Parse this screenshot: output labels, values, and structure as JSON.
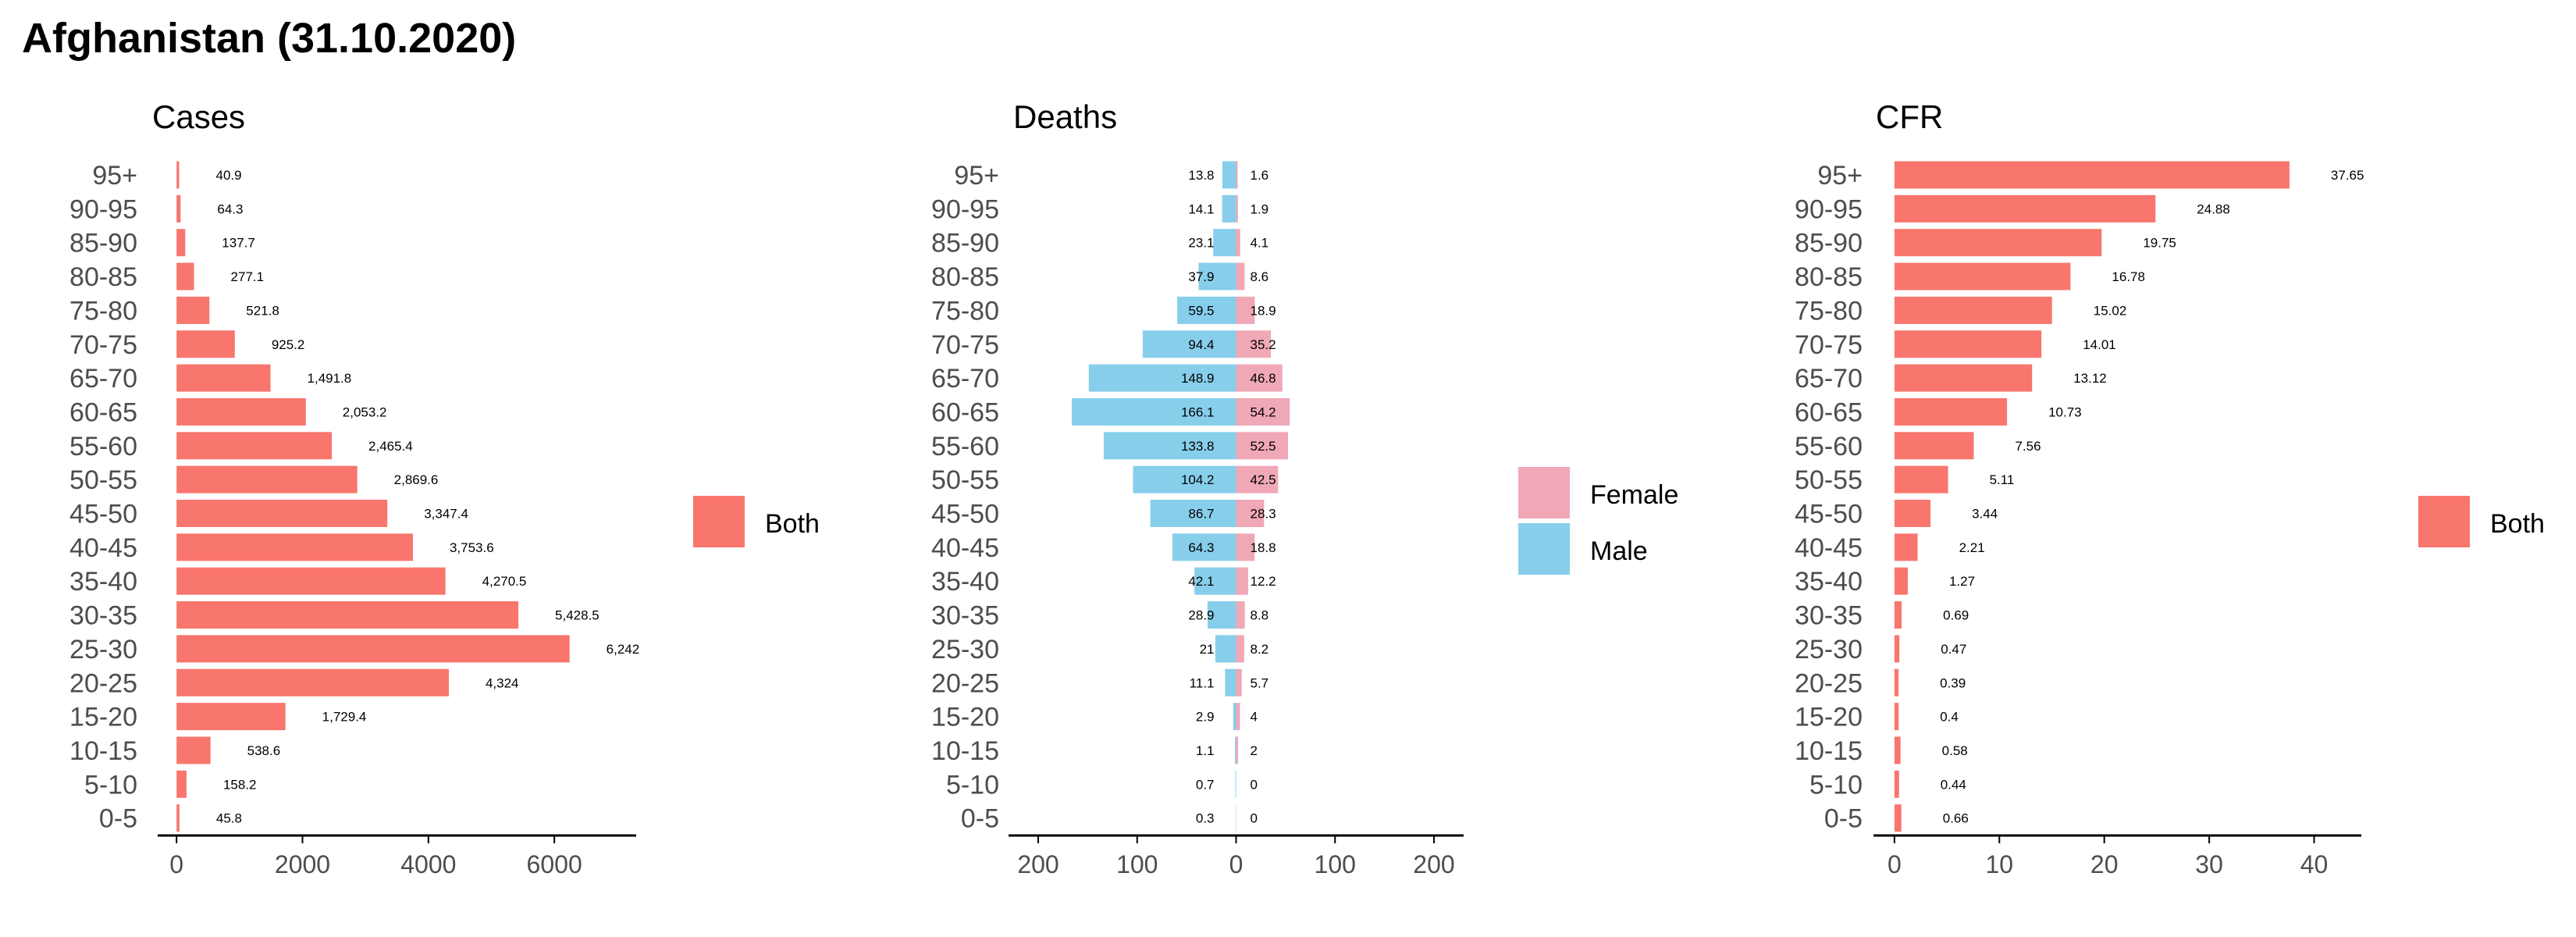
{
  "title": "Afghanistan (31.10.2020)",
  "colors": {
    "both": "#F8766D",
    "female": "#F0A8B7",
    "male": "#87CEEB",
    "axis": "#000000",
    "text": "#4D4D4D"
  },
  "chart_data": [
    {
      "type": "bar",
      "orientation": "horizontal",
      "title": "Cases",
      "categories": [
        "95+",
        "90-95",
        "85-90",
        "80-85",
        "75-80",
        "70-75",
        "65-70",
        "60-65",
        "55-60",
        "50-55",
        "45-50",
        "40-45",
        "35-40",
        "30-35",
        "25-30",
        "20-25",
        "15-20",
        "10-15",
        "5-10",
        "0-5"
      ],
      "series": [
        {
          "name": "Both",
          "values": [
            40.9,
            64.3,
            137.7,
            277.1,
            521.8,
            925.2,
            1491.8,
            2053.2,
            2465.4,
            2869.6,
            3347.4,
            3753.6,
            4270.5,
            5428.5,
            6242,
            4324,
            1729.4,
            538.6,
            158.2,
            45.8
          ],
          "labels": [
            "40.9",
            "64.3",
            "137.7",
            "277.1",
            "521.8",
            "925.2",
            "1,491.8",
            "2,053.2",
            "2,465.4",
            "2,869.6",
            "3,347.4",
            "3,753.6",
            "4,270.5",
            "5,428.5",
            "6,242",
            "4,324",
            "1,729.4",
            "538.6",
            "158.2",
            "45.8"
          ]
        }
      ],
      "xticks": [
        0,
        2000,
        4000,
        6000
      ],
      "xtick_labels": [
        "0",
        "2000",
        "4000",
        "6000"
      ],
      "xlim": [
        -300,
        7300
      ],
      "legend": {
        "position": "right",
        "entries": [
          "Both"
        ]
      }
    },
    {
      "type": "bar",
      "orientation": "horizontal",
      "stacked": "diverging",
      "title": "Deaths",
      "categories": [
        "95+",
        "90-95",
        "85-90",
        "80-85",
        "75-80",
        "70-75",
        "65-70",
        "60-65",
        "55-60",
        "50-55",
        "45-50",
        "40-45",
        "35-40",
        "30-35",
        "25-30",
        "20-25",
        "15-20",
        "10-15",
        "5-10",
        "0-5"
      ],
      "series": [
        {
          "name": "Male",
          "side": "left",
          "values": [
            13.8,
            14.1,
            23.1,
            37.9,
            59.5,
            94.4,
            148.9,
            166.1,
            133.8,
            104.2,
            86.7,
            64.3,
            42.1,
            28.9,
            21,
            11.1,
            2.9,
            1.1,
            0.7,
            0.3
          ],
          "labels": [
            "13.8",
            "14.1",
            "23.1",
            "37.9",
            "59.5",
            "94.4",
            "148.9",
            "166.1",
            "133.8",
            "104.2",
            "86.7",
            "64.3",
            "42.1",
            "28.9",
            "21",
            "11.1",
            "2.9",
            "1.1",
            "0.7",
            "0.3"
          ]
        },
        {
          "name": "Female",
          "side": "right",
          "values": [
            1.6,
            1.9,
            4.1,
            8.6,
            18.9,
            35.2,
            46.8,
            54.2,
            52.5,
            42.5,
            28.3,
            18.8,
            12.2,
            8.8,
            8.2,
            5.7,
            4,
            2,
            0,
            0
          ],
          "labels": [
            "1.6",
            "1.9",
            "4.1",
            "8.6",
            "18.9",
            "35.2",
            "46.8",
            "54.2",
            "52.5",
            "42.5",
            "28.3",
            "18.8",
            "12.2",
            "8.8",
            "8.2",
            "5.7",
            "4",
            "2",
            "0",
            "0"
          ]
        }
      ],
      "xticks": [
        -200,
        -100,
        0,
        100,
        200
      ],
      "xtick_labels": [
        "200",
        "100",
        "0",
        "100",
        "200"
      ],
      "xlim": [
        -230,
        230
      ],
      "legend": {
        "position": "right",
        "entries": [
          "Female",
          "Male"
        ]
      }
    },
    {
      "type": "bar",
      "orientation": "horizontal",
      "title": "CFR",
      "categories": [
        "95+",
        "90-95",
        "85-90",
        "80-85",
        "75-80",
        "70-75",
        "65-70",
        "60-65",
        "55-60",
        "50-55",
        "45-50",
        "40-45",
        "35-40",
        "30-35",
        "25-30",
        "20-25",
        "15-20",
        "10-15",
        "5-10",
        "0-5"
      ],
      "series": [
        {
          "name": "Both",
          "values": [
            37.65,
            24.88,
            19.75,
            16.78,
            15.02,
            14.01,
            13.12,
            10.73,
            7.56,
            5.11,
            3.44,
            2.21,
            1.27,
            0.69,
            0.47,
            0.39,
            0.4,
            0.58,
            0.44,
            0.66
          ],
          "labels": [
            "37.65",
            "24.88",
            "19.75",
            "16.78",
            "15.02",
            "14.01",
            "13.12",
            "10.73",
            "7.56",
            "5.11",
            "3.44",
            "2.21",
            "1.27",
            "0.69",
            "0.47",
            "0.39",
            "0.4",
            "0.58",
            "0.44",
            "0.66"
          ]
        }
      ],
      "xticks": [
        0,
        10,
        20,
        30,
        40
      ],
      "xtick_labels": [
        "0",
        "10",
        "20",
        "30",
        "40"
      ],
      "xlim": [
        -2,
        44.5
      ],
      "legend": {
        "position": "right",
        "entries": [
          "Both"
        ]
      }
    }
  ]
}
